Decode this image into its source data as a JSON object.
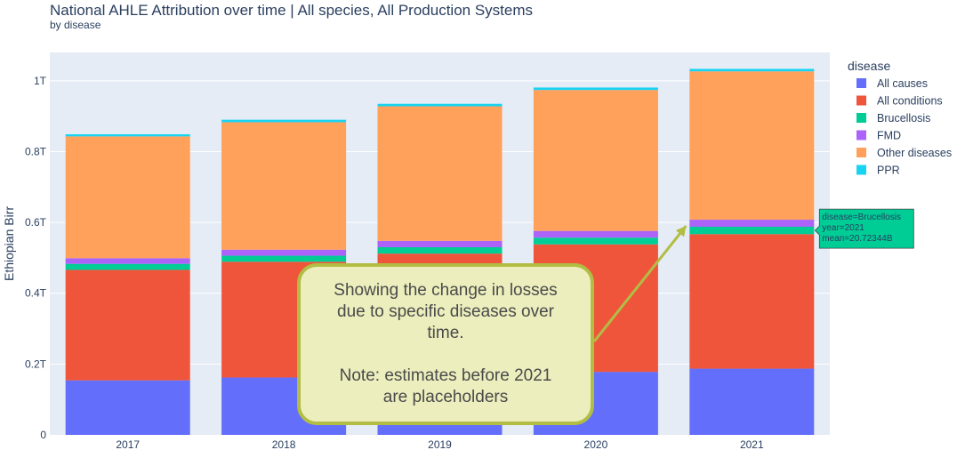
{
  "chart_data": {
    "type": "bar",
    "stacked": true,
    "title": "National AHLE Attribution over time | All species, All Production Systems",
    "subtitle": "by disease",
    "xlabel": "",
    "ylabel": "Ethiopian Birr",
    "categories": [
      "2017",
      "2018",
      "2019",
      "2020",
      "2021"
    ],
    "ylim": [
      0,
      1.08
    ],
    "yticks": [
      {
        "value": 0,
        "label": "0"
      },
      {
        "value": 0.2,
        "label": "0.2T"
      },
      {
        "value": 0.4,
        "label": "0.4T"
      },
      {
        "value": 0.6,
        "label": "0.6T"
      },
      {
        "value": 0.8,
        "label": "0.8T"
      },
      {
        "value": 1.0,
        "label": "1T"
      }
    ],
    "grid": true,
    "legend_title": "disease",
    "legend_position": "right",
    "series": [
      {
        "name": "All causes",
        "color": "#636efa",
        "values": [
          0.154,
          0.162,
          0.17,
          0.178,
          0.187
        ]
      },
      {
        "name": "All conditions",
        "color": "#ef553b",
        "values": [
          0.312,
          0.327,
          0.342,
          0.36,
          0.38
        ]
      },
      {
        "name": "Brucellosis",
        "color": "#00cc96",
        "values": [
          0.017,
          0.017,
          0.018,
          0.019,
          0.0207
        ]
      },
      {
        "name": "FMD",
        "color": "#ab63fa",
        "values": [
          0.016,
          0.017,
          0.018,
          0.019,
          0.02
        ]
      },
      {
        "name": "Other diseases",
        "color": "#ffa15a",
        "values": [
          0.344,
          0.36,
          0.38,
          0.398,
          0.419
        ]
      },
      {
        "name": "PPR",
        "color": "#19d3f3",
        "values": [
          0.006,
          0.007,
          0.007,
          0.007,
          0.007
        ]
      }
    ],
    "hover": {
      "lines": [
        "disease=Brucellosis",
        "year=2021",
        "mean=20.72344B"
      ],
      "color": "#00cc96",
      "series": "Brucellosis",
      "category": "2021"
    },
    "annotation": {
      "lines": [
        "Showing the change in losses",
        "due to specific diseases over",
        "time."
      ],
      "note_lines": [
        "Note: estimates before 2021",
        "are placeholders"
      ],
      "fill": "#eceebd",
      "border": "#b2bd44"
    }
  }
}
